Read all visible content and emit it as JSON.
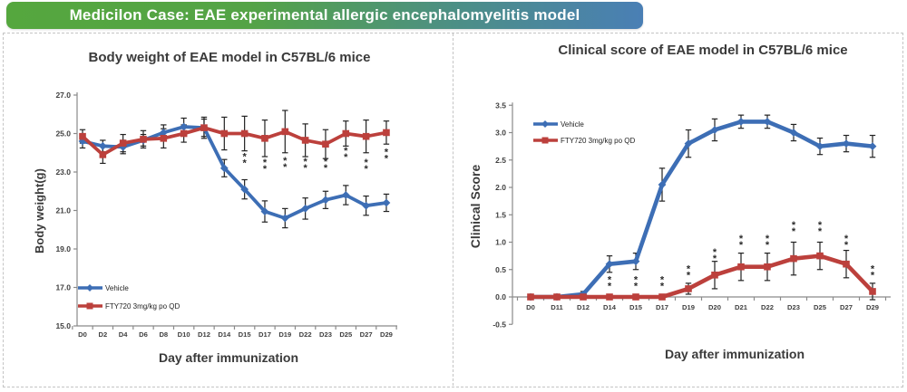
{
  "banner": {
    "text": "Medicilon Case: EAE experimental allergic encephalomyelitis model",
    "gradient_start": "#55a73e",
    "gradient_end": "#4a7fb5",
    "text_color": "#ffffff"
  },
  "colors": {
    "vehicle_blue": "#3d6eb5",
    "fty720_red": "#bc403c",
    "error_bar": "#222222",
    "axis_gray": "#8a8a8a",
    "tick_text": "#3f3f3f",
    "title_text": "#3a3a3a",
    "sig_text": "#2a2a2a",
    "dashed_border": "#c4c4c4"
  },
  "sig_label": "**",
  "chart_data": [
    {
      "id": "body-weight",
      "type": "line",
      "title": "Body weight of EAE model in C57BL/6 mice",
      "xlabel": "Day after immunization",
      "ylabel": "Body weight(g)",
      "ylim": [
        15.0,
        27.0
      ],
      "yticks": [
        15.0,
        17.0,
        19.0,
        21.0,
        23.0,
        25.0,
        27.0
      ],
      "ytick_decimals": 1,
      "axis_cross": 15.0,
      "legend_position": "bottom-left-inside",
      "grid": false,
      "categories": [
        "D0",
        "D2",
        "D4",
        "D6",
        "D8",
        "D10",
        "D12",
        "D14",
        "D15",
        "D17",
        "D19",
        "D22",
        "D23",
        "D25",
        "D27",
        "D29"
      ],
      "series": [
        {
          "name": "Vehicle",
          "marker": "diamond",
          "color": "#3d6eb5",
          "values": [
            24.6,
            24.35,
            24.3,
            24.65,
            25.05,
            25.35,
            25.3,
            23.2,
            22.1,
            20.95,
            20.6,
            21.1,
            21.55,
            21.8,
            21.25,
            21.4
          ],
          "errors": [
            0.35,
            0.3,
            0.35,
            0.3,
            0.4,
            0.45,
            0.45,
            0.45,
            0.5,
            0.55,
            0.5,
            0.55,
            0.45,
            0.5,
            0.5,
            0.45
          ]
        },
        {
          "name": "FTY720 3mg/kg po QD",
          "marker": "square",
          "color": "#bc403c",
          "values": [
            24.85,
            23.9,
            24.5,
            24.7,
            24.75,
            25.0,
            25.3,
            25.0,
            25.0,
            24.75,
            25.1,
            24.65,
            24.45,
            25.0,
            24.85,
            25.05
          ],
          "errors": [
            0.35,
            0.45,
            0.45,
            0.45,
            0.5,
            0.45,
            0.55,
            0.85,
            0.9,
            0.95,
            1.1,
            0.85,
            0.75,
            0.65,
            0.85,
            0.6
          ]
        }
      ],
      "significance": [
        {
          "category": "D15",
          "value": 23.75
        },
        {
          "category": "D17",
          "value": 23.45
        },
        {
          "category": "D19",
          "value": 23.55
        },
        {
          "category": "D22",
          "value": 23.5
        },
        {
          "category": "D23",
          "value": 23.5
        },
        {
          "category": "D25",
          "value": 24.05
        },
        {
          "category": "D27",
          "value": 23.45
        },
        {
          "category": "D29",
          "value": 24.0
        }
      ]
    },
    {
      "id": "clinical-score",
      "type": "line",
      "title": "Clinical score of EAE model in C57BL/6 mice",
      "xlabel": "Day after immunization",
      "ylabel": "Clinical Score",
      "ylim": [
        -0.5,
        3.5
      ],
      "yticks": [
        -0.5,
        0.0,
        0.5,
        1.0,
        1.5,
        2.0,
        2.5,
        3.0,
        3.5
      ],
      "ytick_decimals": 1,
      "axis_cross": 0.0,
      "legend_position": "top-left-inside",
      "grid": false,
      "categories": [
        "D0",
        "D11",
        "D12",
        "D14",
        "D15",
        "D17",
        "D19",
        "D20",
        "D21",
        "D22",
        "D23",
        "D25",
        "D27",
        "D29"
      ],
      "series": [
        {
          "name": "Vehicle",
          "marker": "diamond",
          "color": "#3d6eb5",
          "values": [
            0,
            0,
            0.05,
            0.6,
            0.65,
            2.05,
            2.8,
            3.05,
            3.2,
            3.2,
            3.0,
            2.75,
            2.8,
            2.75
          ],
          "errors": [
            0,
            0,
            0.05,
            0.15,
            0.15,
            0.3,
            0.25,
            0.2,
            0.12,
            0.12,
            0.15,
            0.15,
            0.15,
            0.2
          ]
        },
        {
          "name": "FTY720 3mg/kg po QD",
          "marker": "square",
          "color": "#bc403c",
          "values": [
            0,
            0,
            0,
            0,
            0,
            0,
            0.15,
            0.4,
            0.55,
            0.55,
            0.7,
            0.75,
            0.6,
            0.1
          ],
          "errors": [
            0,
            0,
            0,
            0,
            0,
            0,
            0.1,
            0.25,
            0.25,
            0.25,
            0.3,
            0.25,
            0.25,
            0.15
          ]
        }
      ],
      "significance": [
        {
          "category": "D14",
          "value": 0.3
        },
        {
          "category": "D15",
          "value": 0.3
        },
        {
          "category": "D17",
          "value": 0.3
        },
        {
          "category": "D19",
          "value": 0.5
        },
        {
          "category": "D20",
          "value": 0.8
        },
        {
          "category": "D21",
          "value": 1.05
        },
        {
          "category": "D22",
          "value": 1.05
        },
        {
          "category": "D23",
          "value": 1.3
        },
        {
          "category": "D25",
          "value": 1.3
        },
        {
          "category": "D27",
          "value": 1.05
        },
        {
          "category": "D29",
          "value": 0.5
        }
      ]
    }
  ]
}
